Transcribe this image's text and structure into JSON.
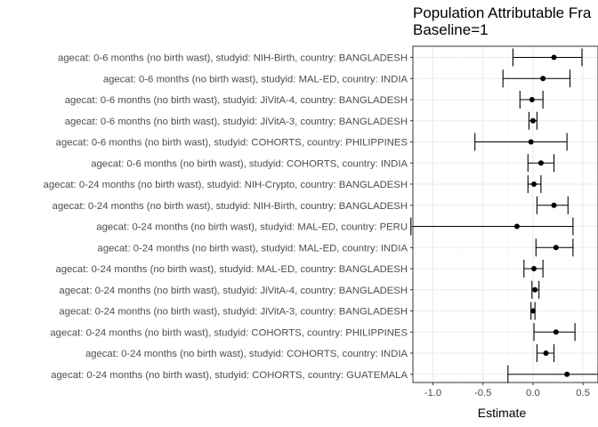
{
  "chart_data": {
    "type": "forest",
    "title": "Population Attributable Fra",
    "subtitle": "Baseline=1",
    "xlabel": "Estimate",
    "ylabel": "",
    "xlim": [
      -1.2,
      0.65
    ],
    "xticks": [
      -1.0,
      -0.5,
      0.0,
      0.5
    ],
    "xtick_labels": [
      "-1.0",
      "-0.5",
      "0.0",
      "0.5"
    ],
    "grid": true,
    "categories": [
      "agecat: 0-6 months (no birth wast), studyid: NIH-Birth, country: BANGLADESH",
      "agecat: 0-6 months (no birth wast), studyid: MAL-ED, country: INDIA",
      "agecat: 0-6 months (no birth wast), studyid: JiVitA-4, country: BANGLADESH",
      "agecat: 0-6 months (no birth wast), studyid: JiVitA-3, country: BANGLADESH",
      "agecat: 0-6 months (no birth wast), studyid: COHORTS, country: PHILIPPINES",
      "agecat: 0-6 months (no birth wast), studyid: COHORTS, country: INDIA",
      "agecat: 0-24 months (no birth wast), studyid: NIH-Crypto, country: BANGLADESH",
      "agecat: 0-24 months (no birth wast), studyid: NIH-Birth, country: BANGLADESH",
      "agecat: 0-24 months (no birth wast), studyid: MAL-ED, country: PERU",
      "agecat: 0-24 months (no birth wast), studyid: MAL-ED, country: INDIA",
      "agecat: 0-24 months (no birth wast), studyid: MAL-ED, country: BANGLADESH",
      "agecat: 0-24 months (no birth wast), studyid: JiVitA-4, country: BANGLADESH",
      "agecat: 0-24 months (no birth wast), studyid: JiVitA-3, country: BANGLADESH",
      "agecat: 0-24 months (no birth wast), studyid: COHORTS, country: PHILIPPINES",
      "agecat: 0-24 months (no birth wast), studyid: COHORTS, country: INDIA",
      "agecat: 0-24 months (no birth wast), studyid: COHORTS, country: GUATEMALA"
    ],
    "estimates": [
      0.21,
      0.1,
      -0.01,
      0.0,
      -0.02,
      0.08,
      0.01,
      0.21,
      -0.16,
      0.23,
      0.01,
      0.02,
      0.0,
      0.23,
      0.13,
      0.34
    ],
    "ci_lower": [
      -0.2,
      -0.3,
      -0.13,
      -0.04,
      -0.58,
      -0.05,
      -0.05,
      0.04,
      -1.22,
      0.03,
      -0.09,
      -0.01,
      -0.02,
      0.01,
      0.04,
      -0.25
    ],
    "ci_upper": [
      0.49,
      0.37,
      0.1,
      0.04,
      0.34,
      0.21,
      0.08,
      0.35,
      0.4,
      0.4,
      0.1,
      0.06,
      0.02,
      0.42,
      0.21,
      0.65
    ],
    "colors": {
      "point": "#000000",
      "panel_border": "#333333",
      "grid_major": "#ebebeb",
      "grid_minor": "#f5f5f5"
    }
  }
}
